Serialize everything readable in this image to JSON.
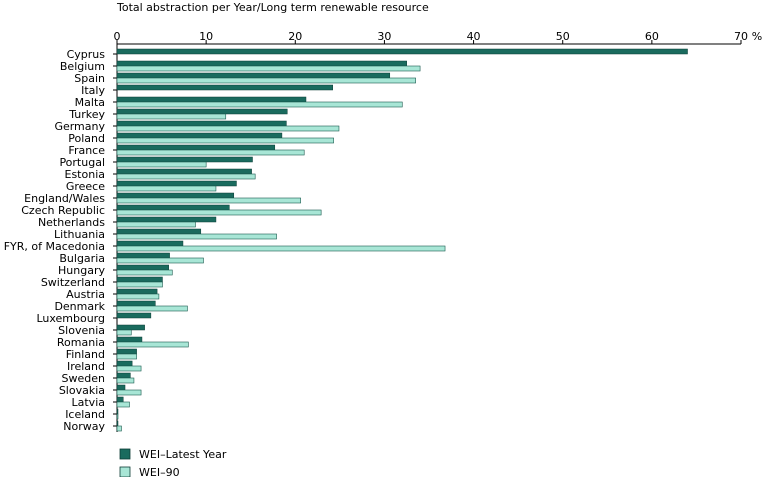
{
  "chart_data": {
    "type": "bar",
    "orientation": "horizontal",
    "title": "Total abstraction per Year/Long term renewable resource",
    "unit": "%",
    "xlim": [
      0,
      70
    ],
    "ticks": [
      0,
      10,
      20,
      30,
      40,
      50,
      60,
      70
    ],
    "categories": [
      "Cyprus",
      "Belgium",
      "Spain",
      "Italy",
      "Malta",
      "Turkey",
      "Germany",
      "Poland",
      "France",
      "Portugal",
      "Estonia",
      "Greece",
      "England/Wales",
      "Czech Republic",
      "Netherlands",
      "Lithuania",
      "FYR, of Macedonia",
      "Bulgaria",
      "Hungary",
      "Switzerland",
      "Austria",
      "Denmark",
      "Luxembourg",
      "Slovenia",
      "Romania",
      "Finland",
      "Ireland",
      "Sweden",
      "Slovakia",
      "Latvia",
      "Iceland",
      "Norway"
    ],
    "series": [
      {
        "name": "WEI–Latest Year",
        "color": "#1a6b5e",
        "values": [
          64,
          32.5,
          30.6,
          24.2,
          21.2,
          19.1,
          19.0,
          18.5,
          17.7,
          15.2,
          15.1,
          13.4,
          13.1,
          12.6,
          11.1,
          9.4,
          7.4,
          5.9,
          5.8,
          5.1,
          4.5,
          4.3,
          3.8,
          3.1,
          2.8,
          2.2,
          1.7,
          1.5,
          0.9,
          0.7,
          0.1,
          0.1
        ]
      },
      {
        "name": "WEI–90",
        "color": "#a8e6d6",
        "values": [
          null,
          34.0,
          33.5,
          null,
          32.0,
          12.2,
          24.9,
          24.3,
          21.0,
          10.0,
          15.5,
          11.1,
          20.6,
          22.9,
          8.8,
          17.9,
          36.8,
          9.7,
          6.2,
          5.1,
          4.7,
          7.9,
          null,
          1.6,
          8.0,
          2.2,
          2.7,
          1.9,
          2.7,
          1.4,
          0.1,
          0.5
        ]
      }
    ],
    "legend_position": "bottom-left",
    "grid": false
  }
}
